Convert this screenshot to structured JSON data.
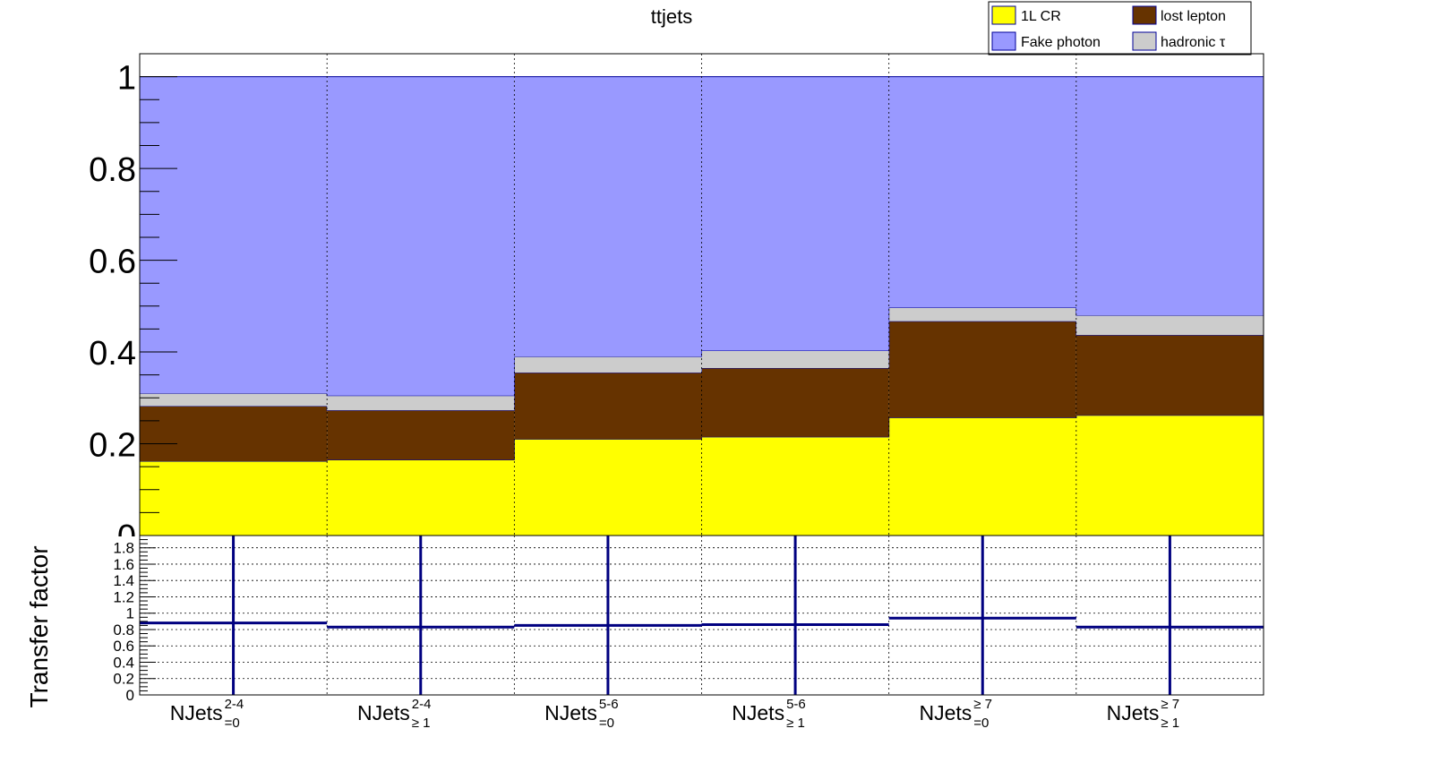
{
  "chart_data": [
    {
      "type": "area",
      "stacked": true,
      "step": true,
      "title": "ttjets",
      "ylabel": "",
      "ylim": [
        0,
        1.05
      ],
      "yticks": [
        "0.2",
        "0.4",
        "0.6",
        "0.8",
        "1"
      ],
      "ytick_values": [
        0.2,
        0.4,
        0.6,
        0.8,
        1.0
      ],
      "y_zero_label": "0",
      "categories": [
        {
          "base": "NJets",
          "sup": "2-4",
          "sub": "=0"
        },
        {
          "base": "NJets",
          "sup": "2-4",
          "sub": "≥ 1"
        },
        {
          "base": "NJets",
          "sup": "5-6",
          "sub": "=0"
        },
        {
          "base": "NJets",
          "sup": "5-6",
          "sub": "≥ 1"
        },
        {
          "base": "NJets",
          "sup": "≥ 7",
          "sub": "=0"
        },
        {
          "base": "NJets",
          "sup": "≥ 7",
          "sub": "≥ 1"
        }
      ],
      "series": [
        {
          "name": "1L CR",
          "color": "#ffff00",
          "values": [
            0.162,
            0.165,
            0.21,
            0.215,
            0.257,
            0.262
          ]
        },
        {
          "name": "lost lepton",
          "color": "#663300",
          "values": [
            0.12,
            0.108,
            0.145,
            0.15,
            0.21,
            0.175
          ]
        },
        {
          "name": "hadronic τ",
          "color": "#cccccc",
          "values": [
            0.028,
            0.032,
            0.035,
            0.038,
            0.03,
            0.043
          ]
        },
        {
          "name": "Fake photon",
          "color": "#9999ff",
          "values": [
            0.69,
            0.695,
            0.61,
            0.597,
            0.503,
            0.52
          ]
        }
      ],
      "outline_color": "#000099",
      "legend": {
        "placement": "top-right",
        "entries": [
          "1L CR",
          "lost lepton",
          "Fake photon",
          "hadronic τ"
        ]
      },
      "grid": "vertical dotted"
    },
    {
      "type": "scatter",
      "ylabel": "Transfer factor",
      "ylim": [
        0,
        1.95
      ],
      "yticks": [
        "0",
        "0.2",
        "0.4",
        "0.6",
        "0.8",
        "1",
        "1.2",
        "1.4",
        "1.6",
        "1.8"
      ],
      "ytick_values": [
        0,
        0.2,
        0.4,
        0.6,
        0.8,
        1.0,
        1.2,
        1.4,
        1.6,
        1.8
      ],
      "values": [
        0.88,
        0.83,
        0.85,
        0.86,
        0.94,
        0.83
      ],
      "error_bars": "vertical lines spanning full panel",
      "color": "#000080",
      "grid": "dotted"
    }
  ]
}
